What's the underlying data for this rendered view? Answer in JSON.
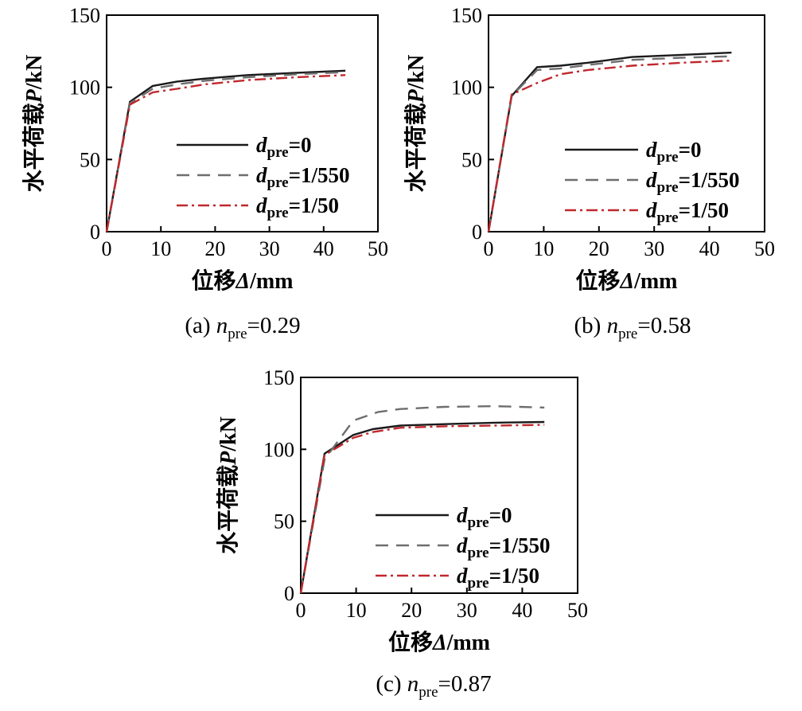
{
  "chart_data": [
    {
      "type": "line",
      "caption": {
        "prefix": "(a) ",
        "var": "n",
        "sub": "pre",
        "suffix": "=0.29"
      },
      "xlabel": {
        "cn": "位移",
        "sym": "Δ",
        "unit": "/mm"
      },
      "ylabel": {
        "cn": "水平荷载",
        "sym": "P",
        "unit": "/kN"
      },
      "xlim": [
        0,
        50
      ],
      "ylim": [
        0,
        150
      ],
      "xticks": [
        0,
        10,
        20,
        30,
        40,
        50
      ],
      "yticks": [
        0,
        50,
        100,
        150
      ],
      "legend_position": "center-right",
      "series": [
        {
          "var": "d",
          "sub": "pre",
          "value": "=0",
          "color": "#1a1a1a",
          "dash": "solid",
          "x": [
            0,
            4.3,
            8.5,
            13,
            18,
            26,
            35,
            44
          ],
          "y": [
            0,
            90,
            101,
            104,
            106,
            108.5,
            110,
            111.5
          ]
        },
        {
          "var": "d",
          "sub": "pre",
          "value": "=1/550",
          "color": "#6e6e6e",
          "dash": "dashed",
          "x": [
            0,
            4.3,
            8.5,
            13,
            18,
            26,
            35,
            44
          ],
          "y": [
            0,
            89,
            99,
            102,
            104.5,
            107,
            109,
            110.5
          ]
        },
        {
          "var": "d",
          "sub": "pre",
          "value": "=1/50",
          "color": "#c0282d",
          "dash": "dashdot",
          "x": [
            0,
            4.3,
            8.5,
            13,
            18,
            26,
            35,
            44
          ],
          "y": [
            0,
            88,
            96.5,
            99,
            102,
            105,
            107,
            108.5
          ]
        }
      ]
    },
    {
      "type": "line",
      "caption": {
        "prefix": "(b) ",
        "var": "n",
        "sub": "pre",
        "suffix": "=0.58"
      },
      "xlabel": {
        "cn": "位移",
        "sym": "Δ",
        "unit": "/mm"
      },
      "ylabel": {
        "cn": "水平荷载",
        "sym": "P",
        "unit": "/kN"
      },
      "xlim": [
        0,
        50
      ],
      "ylim": [
        0,
        150
      ],
      "xticks": [
        0,
        10,
        20,
        30,
        40,
        50
      ],
      "yticks": [
        0,
        50,
        100,
        150
      ],
      "legend_position": "center-right",
      "series": [
        {
          "var": "d",
          "sub": "pre",
          "value": "=0",
          "color": "#1a1a1a",
          "dash": "solid",
          "x": [
            0,
            4.2,
            8.8,
            13,
            18,
            26,
            35,
            44
          ],
          "y": [
            0,
            94,
            114,
            115,
            117,
            121,
            122.5,
            124
          ]
        },
        {
          "var": "d",
          "sub": "pre",
          "value": "=1/550",
          "color": "#6e6e6e",
          "dash": "dashed",
          "x": [
            0,
            4.2,
            8.8,
            13,
            18,
            26,
            35,
            44
          ],
          "y": [
            0,
            94,
            112,
            113,
            115.5,
            119,
            120.5,
            121.5
          ]
        },
        {
          "var": "d",
          "sub": "pre",
          "value": "=1/50",
          "color": "#c0282d",
          "dash": "dashdot",
          "x": [
            0,
            4.2,
            8.8,
            13,
            18,
            26,
            35,
            44
          ],
          "y": [
            0,
            95,
            103,
            109,
            112,
            115,
            117,
            118.5
          ]
        }
      ]
    },
    {
      "type": "line",
      "caption": {
        "prefix": "(c) ",
        "var": "n",
        "sub": "pre",
        "suffix": "=0.87"
      },
      "xlabel": {
        "cn": "位移",
        "sym": "Δ",
        "unit": "/mm"
      },
      "ylabel": {
        "cn": "水平荷载",
        "sym": "P",
        "unit": "/kN"
      },
      "xlim": [
        0,
        50
      ],
      "ylim": [
        0,
        150
      ],
      "xticks": [
        0,
        10,
        20,
        30,
        40,
        50
      ],
      "yticks": [
        0,
        50,
        100,
        150
      ],
      "legend_position": "center-right",
      "series": [
        {
          "var": "d",
          "sub": "pre",
          "value": "=0",
          "color": "#1a1a1a",
          "dash": "solid",
          "x": [
            0,
            4.3,
            9.5,
            13,
            18,
            26,
            35,
            44
          ],
          "y": [
            0,
            97,
            110,
            114,
            116.5,
            117.5,
            118.5,
            119
          ]
        },
        {
          "var": "d",
          "sub": "pre",
          "value": "=1/550",
          "color": "#6e6e6e",
          "dash": "dashed",
          "x": [
            0,
            4.3,
            9.5,
            14,
            18,
            26,
            35,
            44
          ],
          "y": [
            0,
            93,
            120,
            126,
            128,
            129.5,
            130,
            129
          ]
        },
        {
          "var": "d",
          "sub": "pre",
          "value": "=1/50",
          "color": "#c0282d",
          "dash": "dashdot",
          "x": [
            0,
            4.3,
            9.5,
            13,
            18,
            26,
            35,
            44
          ],
          "y": [
            0,
            96,
            108,
            112,
            115,
            116,
            116.5,
            117
          ]
        }
      ]
    }
  ]
}
